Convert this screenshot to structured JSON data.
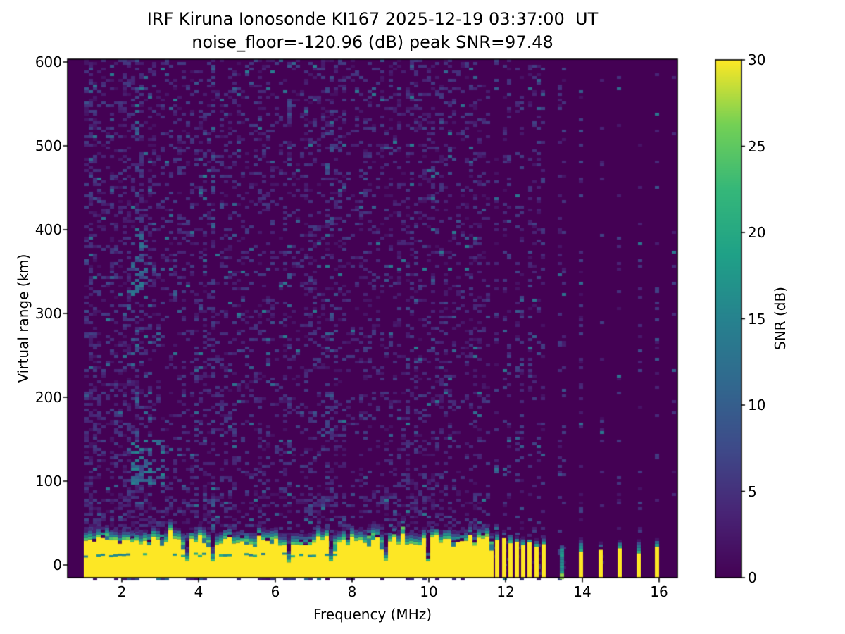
{
  "figure": {
    "background": "#ffffff",
    "text_color": "#000000"
  },
  "chart_data": {
    "type": "heatmap",
    "title": "IRF Kiruna Ionosonde KI167 2025-12-19 03:37:00  UT",
    "subtitle": "noise_floor=-120.96 (dB) peak SNR=97.48",
    "station": "IRF Kiruna Ionosonde KI167",
    "timestamp_ut": "2025-12-19 03:37:00",
    "noise_floor_db": -120.96,
    "peak_snr_db": 97.48,
    "xlabel": "Frequency (MHz)",
    "ylabel": "Virtual range (km)",
    "colorbar_label": "SNR (dB)",
    "xlim": [
      0.59,
      16.48
    ],
    "ylim": [
      -15,
      603
    ],
    "x_ticks": [
      2,
      4,
      6,
      8,
      10,
      12,
      14,
      16
    ],
    "y_ticks": [
      0,
      100,
      200,
      300,
      400,
      500,
      600
    ],
    "colorbar_ticks": [
      0,
      5,
      10,
      15,
      20,
      25,
      30
    ],
    "colorbar_range": [
      0,
      30
    ],
    "grid": false,
    "legend": "colorbar-right",
    "colormap": "viridis",
    "colormap_stops": [
      [
        0.0,
        "#440154"
      ],
      [
        0.125,
        "#482475"
      ],
      [
        0.25,
        "#3e4a89"
      ],
      [
        0.375,
        "#31688e"
      ],
      [
        0.5,
        "#26828e"
      ],
      [
        0.625,
        "#1fa187"
      ],
      [
        0.75,
        "#35b779"
      ],
      [
        0.875,
        "#73d055"
      ],
      [
        1.0,
        "#fde725"
      ]
    ],
    "ground_band": {
      "f_start": 1.0,
      "f_end": 11.62,
      "bottom_km": -15,
      "top_km_min": 23,
      "top_km_max": 36,
      "value_db": 30,
      "inner_line_km": 13,
      "inner_line_f_end": 7.6
    },
    "band_notches": [
      3.67,
      4.39,
      6.33,
      7.41,
      8.92,
      10.02
    ],
    "rfi_bars": [
      {
        "f": 11.78,
        "top": 30,
        "cap": 41
      },
      {
        "f": 11.97,
        "top": 32,
        "cap": 42
      },
      {
        "f": 12.13,
        "top": 26,
        "cap": 38
      },
      {
        "f": 12.29,
        "top": 28,
        "cap": 36
      },
      {
        "f": 12.46,
        "top": 24,
        "cap": 34
      },
      {
        "f": 12.63,
        "top": 27,
        "cap": 37
      },
      {
        "f": 12.81,
        "top": 22,
        "cap": 33
      },
      {
        "f": 12.99,
        "top": 25,
        "cap": 35
      },
      {
        "f": 13.47,
        "top": 20,
        "cap": 30,
        "weak": true
      },
      {
        "f": 13.96,
        "top": 16,
        "cap": 34
      },
      {
        "f": 14.48,
        "top": 18,
        "cap": 28
      },
      {
        "f": 14.97,
        "top": 20,
        "cap": 30
      },
      {
        "f": 15.47,
        "top": 14,
        "cap": 30
      },
      {
        "f": 15.94,
        "top": 22,
        "cap": 32
      }
    ],
    "rfi_stripes": [
      {
        "f": 11.78,
        "p": 0.22
      },
      {
        "f": 11.97,
        "p": 0.22
      },
      {
        "f": 12.13,
        "p": 0.2
      },
      {
        "f": 12.29,
        "p": 0.2
      },
      {
        "f": 12.46,
        "p": 0.2
      },
      {
        "f": 12.63,
        "p": 0.2
      },
      {
        "f": 12.81,
        "p": 0.18
      },
      {
        "f": 12.99,
        "p": 0.18
      },
      {
        "f": 13.47,
        "p": 0.18
      },
      {
        "f": 13.96,
        "p": 0.18
      },
      {
        "f": 14.48,
        "p": 0.12
      },
      {
        "f": 14.97,
        "p": 0.12
      },
      {
        "f": 15.47,
        "p": 0.1
      },
      {
        "f": 15.94,
        "p": 0.12
      },
      {
        "f": 16.42,
        "p": 0.07
      }
    ],
    "noise": {
      "seed": 167,
      "f_start": 1.0,
      "f_cont_end": 11.65,
      "base_p": 0.22,
      "left_dense_f": 1.35,
      "left_dense_p": 0.45,
      "low_f": 2.6,
      "low_f_p": 0.3,
      "near_ground_km": 85,
      "near_ground_boost": 0.12,
      "enhanced_columns": [
        2.37,
        4.39,
        6.33,
        7.41
      ]
    },
    "clusters": [
      {
        "f": [
          2.2,
          3.15
        ],
        "h": [
          95,
          150
        ],
        "p": 0.18,
        "db": [
          6,
          16
        ]
      },
      {
        "f": [
          2.2,
          2.65
        ],
        "h": [
          325,
          395
        ],
        "p": 0.12,
        "db": [
          5,
          14
        ]
      }
    ]
  }
}
